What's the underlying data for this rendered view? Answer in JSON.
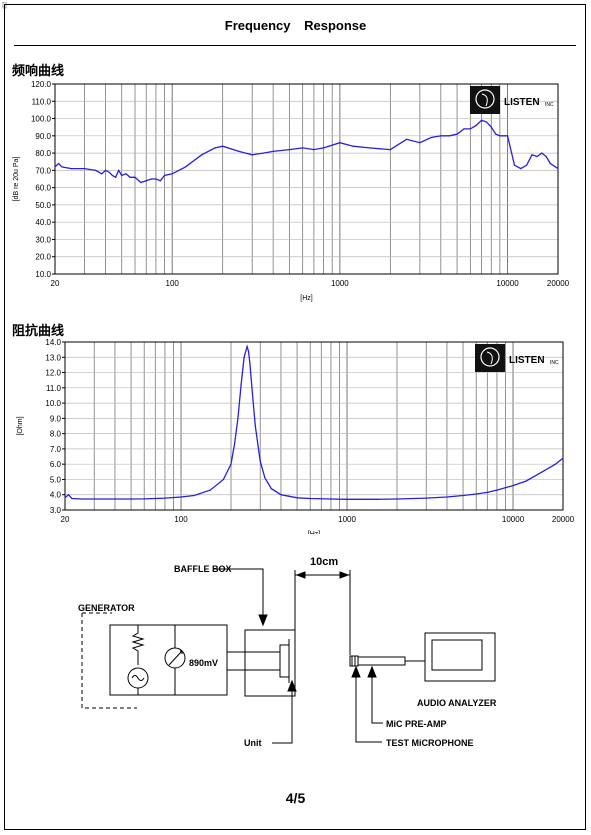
{
  "page": {
    "title": "Frequency    Response",
    "page_number": "4/5",
    "corner_mark": "⌷"
  },
  "logo": {
    "brand": "LISTEN",
    "suffix": "INC"
  },
  "diagram": {
    "baffle_box": "BAFFLE BOX",
    "distance": "10cm",
    "generator": "GENERATOR",
    "voltage": "890mV",
    "audio_analyzer": "AUDIO ANALYZER",
    "mic_preamp": "MiC PRE-AMP",
    "test_mic": "TEST MiCROPHONE",
    "unit": "Unit"
  },
  "colors": {
    "curve": "#2a1fe0",
    "grid": "#777777",
    "axis": "#000000"
  },
  "chart_data": [
    {
      "type": "line",
      "section_label": "频响曲线",
      "xlabel": "[Hz]",
      "ylabel": "[dB re 20u Pa]",
      "x_scale": "log",
      "xlim": [
        20,
        20000
      ],
      "ylim": [
        10,
        120
      ],
      "y_ticks": [
        "10.0",
        "20.0",
        "30.0",
        "40.0",
        "50.0",
        "60.0",
        "70.0",
        "80.0",
        "90.0",
        "100.0",
        "110.0",
        "120.0"
      ],
      "x_ticks": [
        "20",
        "100",
        "1000",
        "10000",
        "20000"
      ],
      "grid": true,
      "series": [
        {
          "x": [
            20,
            21,
            22,
            25,
            30,
            35,
            38,
            40,
            42,
            44,
            46,
            48,
            50,
            53,
            56,
            60,
            65,
            70,
            75,
            80,
            85,
            90,
            100,
            120,
            150,
            180,
            200,
            250,
            300,
            350,
            400,
            500,
            600,
            700,
            800,
            1000,
            1200,
            1500,
            2000,
            2500,
            3000,
            3500,
            4000,
            4500,
            5000,
            5500,
            6000,
            6500,
            7000,
            7500,
            8000,
            8500,
            9000,
            10000,
            11000,
            12000,
            13000,
            14000,
            15000,
            16000,
            17000,
            18000,
            20000
          ],
          "y": [
            72,
            74,
            72,
            71,
            71,
            70,
            68,
            70,
            69,
            67,
            66,
            70,
            67,
            68,
            66,
            66,
            63,
            64,
            65,
            65,
            64,
            67,
            68,
            72,
            79,
            83,
            84,
            81,
            79,
            80,
            81,
            82,
            83,
            82,
            83,
            86,
            84,
            83,
            82,
            88,
            86,
            89,
            90,
            90,
            91,
            94,
            94,
            96,
            99,
            98,
            95,
            91,
            90,
            90,
            73,
            71,
            73,
            79,
            78,
            80,
            78,
            74,
            71
          ]
        }
      ]
    },
    {
      "type": "line",
      "section_label": "阻抗曲线",
      "xlabel": "[Hz]",
      "ylabel": "[Ohm]",
      "x_scale": "log",
      "xlim": [
        20,
        20000
      ],
      "ylim": [
        3,
        14
      ],
      "y_ticks": [
        "3.0",
        "4.0",
        "5.0",
        "6.0",
        "7.0",
        "8.0",
        "9.0",
        "10.0",
        "11.0",
        "12.0",
        "13.0",
        "14.0"
      ],
      "x_ticks": [
        "20",
        "100",
        "1000",
        "10000",
        "20000"
      ],
      "grid": true,
      "series": [
        {
          "x": [
            20,
            21,
            22,
            25,
            30,
            40,
            50,
            60,
            80,
            100,
            120,
            150,
            180,
            200,
            210,
            220,
            230,
            240,
            250,
            255,
            260,
            270,
            280,
            300,
            320,
            350,
            400,
            500,
            600,
            800,
            1000,
            1500,
            2000,
            3000,
            4000,
            5000,
            6000,
            7000,
            8000,
            10000,
            12000,
            15000,
            18000,
            20000
          ],
          "y": [
            3.8,
            4.0,
            3.75,
            3.72,
            3.72,
            3.72,
            3.72,
            3.73,
            3.78,
            3.85,
            3.95,
            4.3,
            5.0,
            6.0,
            7.3,
            9.0,
            11.2,
            13.0,
            13.7,
            13.4,
            12.6,
            10.5,
            8.5,
            6.2,
            5.1,
            4.4,
            4.0,
            3.8,
            3.75,
            3.72,
            3.7,
            3.7,
            3.72,
            3.78,
            3.85,
            3.95,
            4.05,
            4.15,
            4.3,
            4.6,
            4.9,
            5.5,
            6.0,
            6.4
          ]
        }
      ]
    }
  ]
}
